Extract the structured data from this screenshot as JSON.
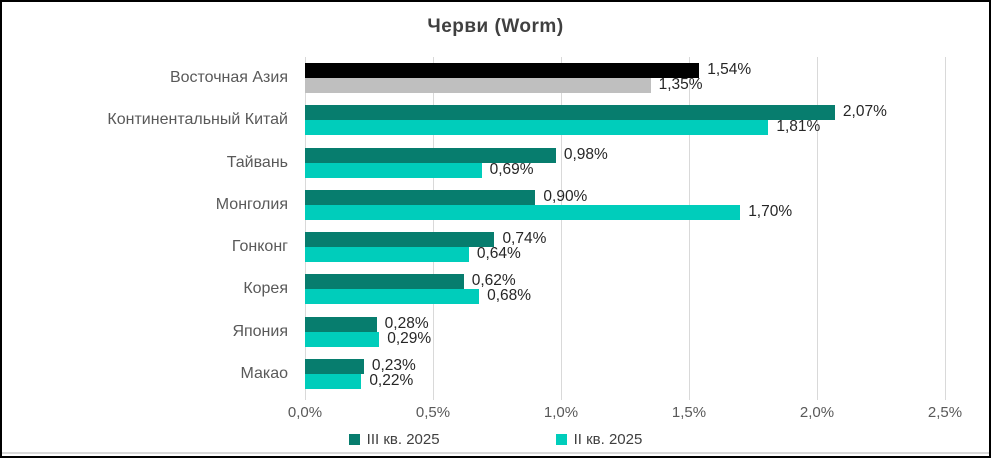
{
  "chart_data": {
    "type": "bar",
    "orientation": "horizontal",
    "title": "Черви (Worm)",
    "categories": [
      "Восточная Азия",
      "Континентальный Китай",
      "Тайвань",
      "Монголия",
      "Гонконг",
      "Корея",
      "Япония",
      "Макао"
    ],
    "series": [
      {
        "name": "III кв. 2025",
        "color": "#077d6e",
        "values": [
          1.54,
          2.07,
          0.98,
          0.9,
          0.74,
          0.62,
          0.28,
          0.23
        ],
        "labels": [
          "1,54%",
          "2,07%",
          "0,98%",
          "0,90%",
          "0,74%",
          "0,62%",
          "0,28%",
          "0,23%"
        ]
      },
      {
        "name": "II кв. 2025",
        "color": "#00cdbb",
        "values": [
          1.35,
          1.81,
          0.69,
          1.7,
          0.64,
          0.68,
          0.29,
          0.22
        ],
        "labels": [
          "1,35%",
          "1,81%",
          "0,69%",
          "1,70%",
          "0,64%",
          "0,68%",
          "0,29%",
          "0,22%"
        ]
      }
    ],
    "highlight": {
      "category_index": 0,
      "colors": [
        "#000000",
        "#bfbfbf"
      ]
    },
    "x_axis": {
      "min": 0,
      "max": 2.5,
      "step": 0.5,
      "tick_labels": [
        "0,0%",
        "0,5%",
        "1,0%",
        "1,5%",
        "2,0%",
        "2,5%"
      ]
    },
    "grid": true,
    "legend_position": "bottom",
    "colors": {
      "grid": "#d9d9d9",
      "category_text": "#595959",
      "axis_text": "#595959",
      "value_text": "#262626",
      "title_text": "#404040"
    }
  }
}
